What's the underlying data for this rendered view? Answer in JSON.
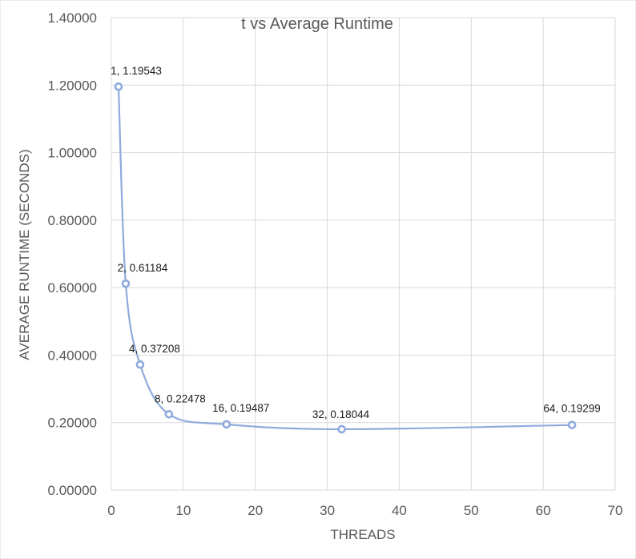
{
  "chart_data": {
    "type": "scatter",
    "title": "t vs Average Runtime",
    "xlabel": "THREADS",
    "ylabel": "AVERAGE RUNTIME (SECONDS)",
    "xlim": [
      0,
      70
    ],
    "ylim": [
      0,
      1.4
    ],
    "x_ticks": [
      0,
      10,
      20,
      30,
      40,
      50,
      60,
      70
    ],
    "x_tick_labels": [
      "0",
      "10",
      "20",
      "30",
      "40",
      "50",
      "60",
      "70"
    ],
    "y_ticks": [
      0,
      0.2,
      0.4,
      0.6,
      0.8,
      1.0,
      1.2,
      1.4
    ],
    "y_tick_labels": [
      "0.00000",
      "0.20000",
      "0.40000",
      "0.60000",
      "0.80000",
      "1.00000",
      "1.20000",
      "1.40000"
    ],
    "grid": true,
    "legend": "none",
    "line_style": "smooth-lines-with-markers",
    "series_color": "#8faadc",
    "series": [
      {
        "x": [
          1,
          2,
          4,
          8,
          16,
          32,
          64
        ],
        "y": [
          1.19543,
          0.61184,
          0.37208,
          0.22478,
          0.19487,
          0.18044,
          0.19299
        ],
        "data_labels": [
          "1, 1.19543",
          "2, 0.61184",
          "4, 0.37208",
          "8, 0.22478",
          "16, 0.19487",
          "32, 0.18044",
          "64, 0.19299"
        ]
      }
    ]
  }
}
